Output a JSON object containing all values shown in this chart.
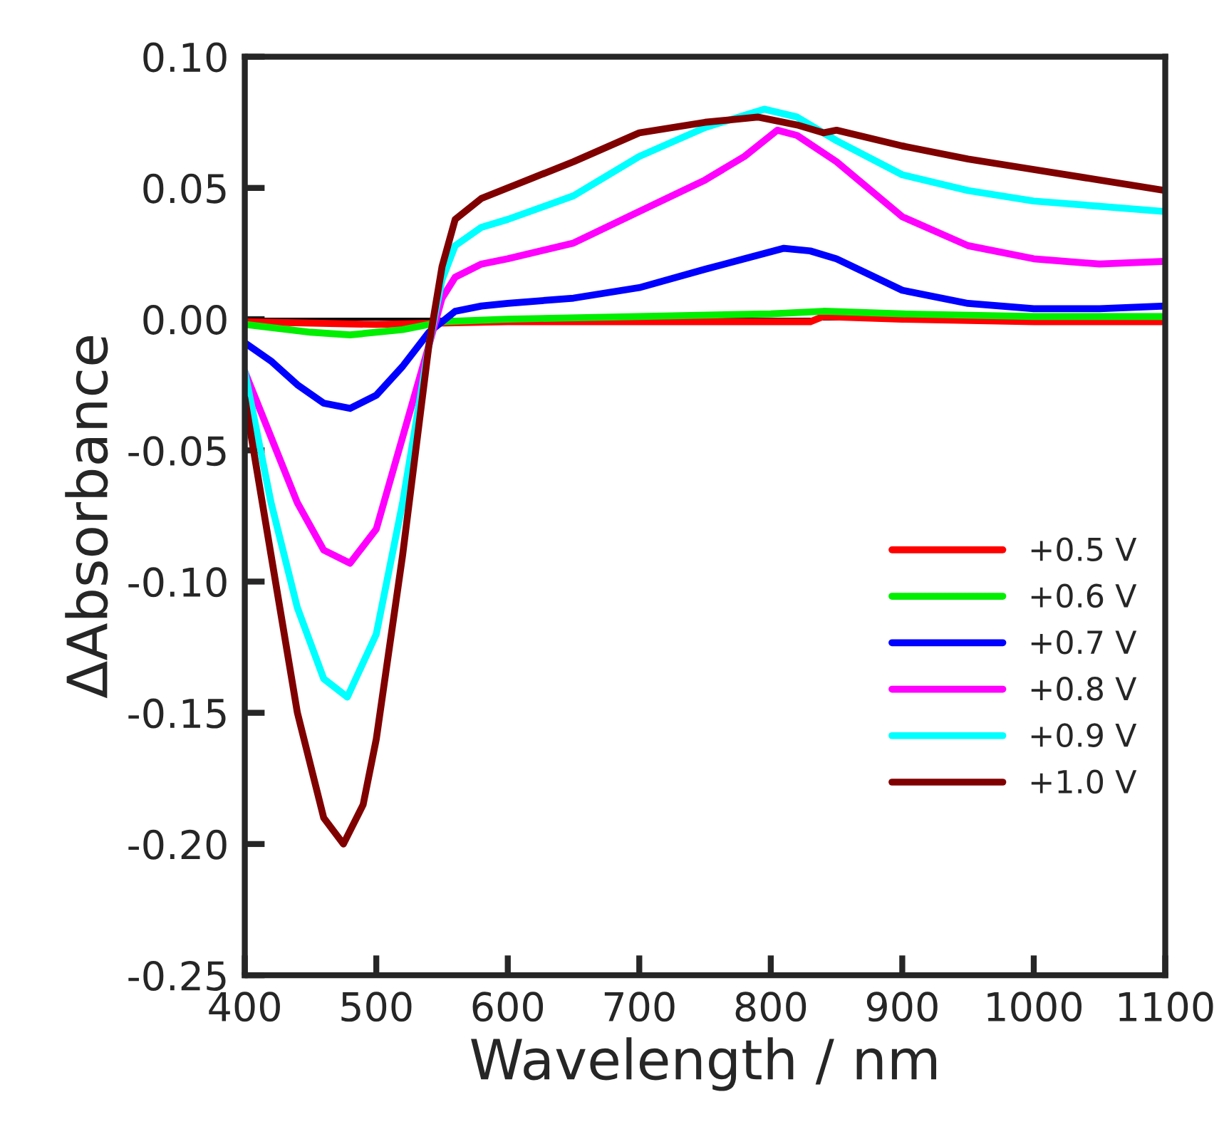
{
  "chart_data": {
    "type": "line",
    "xlabel": "Wavelength / nm",
    "ylabel": "ΔAbsorbance",
    "xlim": [
      400,
      1100
    ],
    "xticks": [
      400,
      500,
      600,
      700,
      800,
      900,
      1000,
      1100
    ],
    "ylim": [
      -0.25,
      0.1
    ],
    "yticks": [
      {
        "value": -0.25,
        "label": "-0.25"
      },
      {
        "value": -0.2,
        "label": "-0.20"
      },
      {
        "value": -0.15,
        "label": "-0.15"
      },
      {
        "value": -0.1,
        "label": "-0.10"
      },
      {
        "value": -0.05,
        "label": "-0.05"
      },
      {
        "value": 0,
        "label": "0.00"
      },
      {
        "value": 0.05,
        "label": "0.05"
      },
      {
        "value": 0.1,
        "label": "0.10"
      }
    ],
    "grid": false,
    "legend": "bottom right",
    "marker": "none",
    "line_style": "solid",
    "ref_lines": [
      {
        "axis": "y",
        "value": 0,
        "color": "#000000"
      }
    ],
    "series": [
      {
        "name": "+0.5 V",
        "color": "#ff0000",
        "x": [
          400,
          500,
          600,
          700,
          830,
          840,
          900,
          1000,
          1100
        ],
        "values": [
          -0.001,
          -0.002,
          -0.001,
          -0.001,
          -0.001,
          0.001,
          0.0,
          -0.001,
          -0.001
        ]
      },
      {
        "name": "+0.6 V",
        "color": "#00ee00",
        "x": [
          400,
          450,
          480,
          520,
          550,
          600,
          700,
          800,
          840,
          900,
          1000,
          1100
        ],
        "values": [
          -0.002,
          -0.005,
          -0.006,
          -0.004,
          -0.001,
          0.0,
          0.001,
          0.002,
          0.003,
          0.002,
          0.001,
          0.001
        ]
      },
      {
        "name": "+0.7 V",
        "color": "#0000ff",
        "x": [
          400,
          420,
          440,
          460,
          480,
          500,
          520,
          540,
          560,
          580,
          600,
          650,
          700,
          750,
          780,
          810,
          830,
          850,
          900,
          950,
          1000,
          1050,
          1100
        ],
        "values": [
          -0.009,
          -0.016,
          -0.025,
          -0.032,
          -0.034,
          -0.029,
          -0.018,
          -0.005,
          0.003,
          0.005,
          0.006,
          0.008,
          0.012,
          0.019,
          0.023,
          0.027,
          0.026,
          0.023,
          0.011,
          0.006,
          0.004,
          0.004,
          0.005
        ]
      },
      {
        "name": "+0.8 V",
        "color": "#ff00ff",
        "x": [
          400,
          420,
          440,
          460,
          480,
          500,
          520,
          540,
          550,
          560,
          580,
          600,
          650,
          700,
          750,
          780,
          805,
          820,
          850,
          900,
          950,
          1000,
          1050,
          1100
        ],
        "values": [
          -0.02,
          -0.045,
          -0.07,
          -0.088,
          -0.093,
          -0.08,
          -0.045,
          -0.01,
          0.008,
          0.016,
          0.021,
          0.023,
          0.029,
          0.041,
          0.053,
          0.062,
          0.072,
          0.07,
          0.06,
          0.039,
          0.028,
          0.023,
          0.021,
          0.022
        ]
      },
      {
        "name": "+0.9 V",
        "color": "#00ffff",
        "x": [
          400,
          420,
          440,
          460,
          478,
          500,
          520,
          540,
          550,
          560,
          580,
          600,
          650,
          700,
          750,
          795,
          820,
          850,
          900,
          950,
          1000,
          1050,
          1100
        ],
        "values": [
          -0.02,
          -0.07,
          -0.11,
          -0.137,
          -0.144,
          -0.12,
          -0.07,
          -0.01,
          0.015,
          0.028,
          0.035,
          0.038,
          0.047,
          0.062,
          0.073,
          0.08,
          0.077,
          0.068,
          0.055,
          0.049,
          0.045,
          0.043,
          0.041
        ]
      },
      {
        "name": "+1.0 V",
        "color": "#800000",
        "x": [
          400,
          420,
          440,
          460,
          475,
          490,
          500,
          520,
          540,
          550,
          560,
          580,
          600,
          650,
          700,
          750,
          790,
          820,
          840,
          850,
          900,
          950,
          1000,
          1050,
          1100
        ],
        "values": [
          -0.03,
          -0.09,
          -0.15,
          -0.19,
          -0.2,
          -0.185,
          -0.16,
          -0.09,
          -0.01,
          0.02,
          0.038,
          0.046,
          0.05,
          0.06,
          0.071,
          0.075,
          0.077,
          0.074,
          0.071,
          0.072,
          0.066,
          0.061,
          0.057,
          0.053,
          0.049
        ]
      }
    ]
  }
}
